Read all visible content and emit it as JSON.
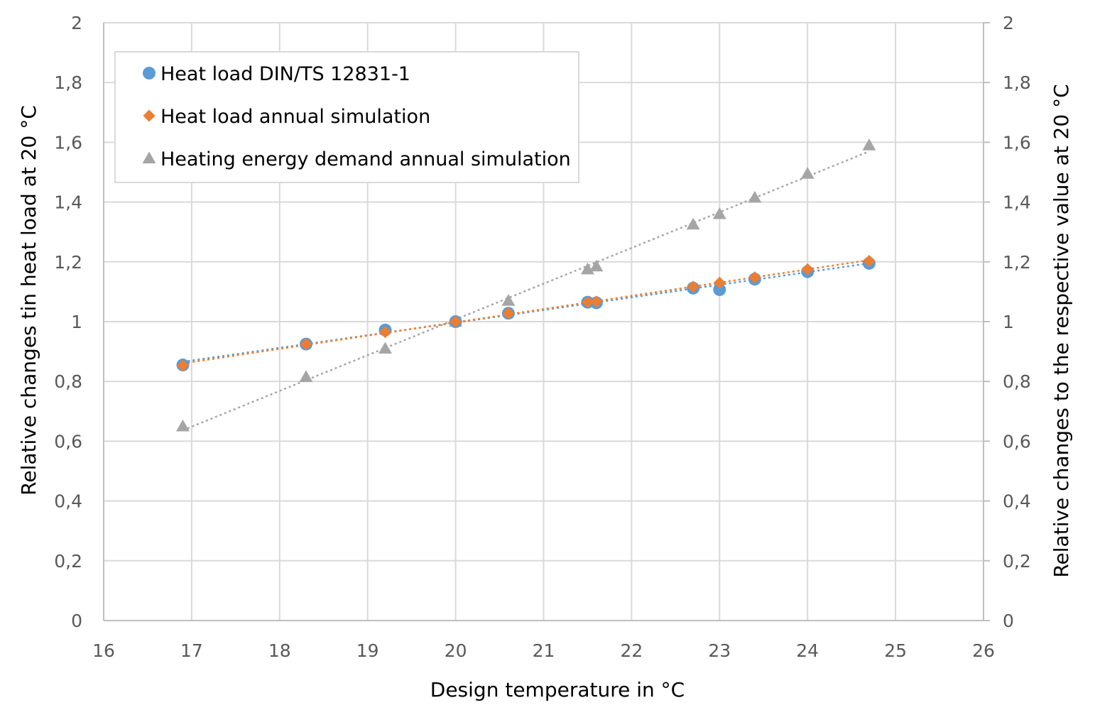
{
  "chart_data": {
    "type": "scatter",
    "xlabel": "Design temperature in °C",
    "ylabel": "Relative changes tin heat load at 20 °C",
    "y2label": "Relative changes to the respective value at 20 °C",
    "xlim": [
      16,
      26
    ],
    "ylim": [
      0,
      2
    ],
    "y2lim": [
      0,
      2
    ],
    "x_ticks": [
      "16",
      "17",
      "18",
      "19",
      "20",
      "21",
      "22",
      "23",
      "24",
      "25",
      "26"
    ],
    "y_ticks": [
      "0",
      "0,2",
      "0,4",
      "0,6",
      "0,8",
      "1",
      "1,2",
      "1,4",
      "1,6",
      "1,8",
      "2"
    ],
    "y2_ticks": [
      "0",
      "0,2",
      "0,4",
      "0,6",
      "0,8",
      "1",
      "1,2",
      "1,4",
      "1,6",
      "1,8",
      "2"
    ],
    "grid": true,
    "legend_position": "top-left",
    "trendlines": "linear, dotted",
    "series": [
      {
        "name": "Heat load DIN/TS 12831-1",
        "marker": "circle",
        "color": "#5B9BD5",
        "axis": "left",
        "x": [
          16.9,
          18.3,
          19.2,
          20.0,
          20.6,
          21.5,
          21.6,
          22.7,
          23.0,
          23.4,
          24.0,
          24.7
        ],
        "y": [
          0.855,
          0.925,
          0.972,
          1.0,
          1.028,
          1.065,
          1.063,
          1.112,
          1.107,
          1.142,
          1.167,
          1.195
        ]
      },
      {
        "name": "Heat load annual simulation",
        "marker": "diamond",
        "color": "#ED7D31",
        "axis": "left",
        "x": [
          16.9,
          18.3,
          19.2,
          20.0,
          20.6,
          21.5,
          21.6,
          22.7,
          23.0,
          23.4,
          24.0,
          24.7
        ],
        "y": [
          0.853,
          0.925,
          0.965,
          1.0,
          1.028,
          1.065,
          1.067,
          1.117,
          1.13,
          1.148,
          1.175,
          1.203
        ]
      },
      {
        "name": "Heating energy demand annual simulation",
        "marker": "triangle",
        "color": "#A5A5A5",
        "axis": "right",
        "x": [
          16.9,
          18.3,
          19.2,
          20.0,
          20.6,
          21.5,
          21.6,
          22.7,
          23.0,
          23.4,
          24.0,
          24.7
        ],
        "y": [
          0.65,
          0.815,
          0.91,
          1.0,
          1.07,
          1.175,
          1.185,
          1.325,
          1.36,
          1.415,
          1.495,
          1.59
        ]
      }
    ]
  }
}
